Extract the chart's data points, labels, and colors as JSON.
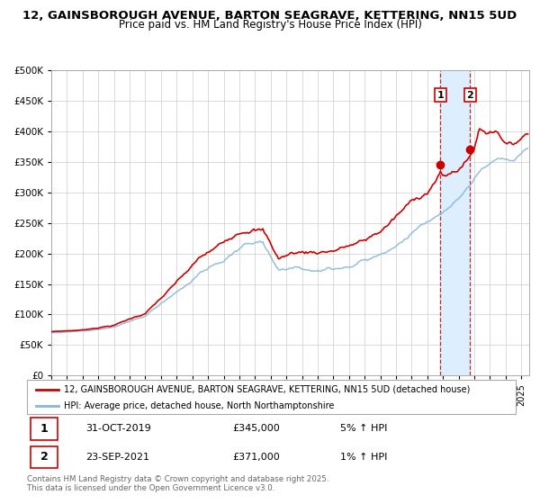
{
  "title_line1": "12, GAINSBOROUGH AVENUE, BARTON SEAGRAVE, KETTERING, NN15 5UD",
  "title_line2": "Price paid vs. HM Land Registry's House Price Index (HPI)",
  "legend_line1": "12, GAINSBOROUGH AVENUE, BARTON SEAGRAVE, KETTERING, NN15 5UD (detached house)",
  "legend_line2": "HPI: Average price, detached house, North Northamptonshire",
  "footnote": "Contains HM Land Registry data © Crown copyright and database right 2025.\nThis data is licensed under the Open Government Licence v3.0.",
  "sale1_label": "1",
  "sale1_date": "31-OCT-2019",
  "sale1_price": "£345,000",
  "sale1_hpi": "5% ↑ HPI",
  "sale2_label": "2",
  "sale2_date": "23-SEP-2021",
  "sale2_price": "£371,000",
  "sale2_hpi": "1% ↑ HPI",
  "sale1_x": 2019.83,
  "sale2_x": 2021.73,
  "sale1_price_val": 345000,
  "sale2_price_val": 371000,
  "ylim": [
    0,
    500000
  ],
  "xlim_start": 1995.0,
  "xlim_end": 2025.5,
  "red_color": "#cc0000",
  "blue_color": "#88b8d8",
  "highlight_color": "#ddeeff",
  "grid_color": "#cccccc",
  "hpi_waypoints": [
    [
      1995.0,
      70000
    ],
    [
      1997.0,
      73000
    ],
    [
      1999.0,
      82000
    ],
    [
      2001.0,
      100000
    ],
    [
      2003.0,
      145000
    ],
    [
      2004.5,
      180000
    ],
    [
      2006.0,
      205000
    ],
    [
      2007.5,
      235000
    ],
    [
      2008.5,
      242000
    ],
    [
      2009.5,
      195000
    ],
    [
      2010.5,
      205000
    ],
    [
      2012.0,
      205000
    ],
    [
      2013.0,
      208000
    ],
    [
      2014.0,
      215000
    ],
    [
      2015.0,
      225000
    ],
    [
      2016.0,
      238000
    ],
    [
      2017.0,
      258000
    ],
    [
      2018.0,
      280000
    ],
    [
      2019.0,
      300000
    ],
    [
      2020.0,
      315000
    ],
    [
      2020.5,
      320000
    ],
    [
      2021.0,
      330000
    ],
    [
      2021.5,
      345000
    ],
    [
      2022.0,
      360000
    ],
    [
      2022.5,
      375000
    ],
    [
      2023.0,
      380000
    ],
    [
      2023.5,
      385000
    ],
    [
      2024.0,
      378000
    ],
    [
      2024.5,
      372000
    ],
    [
      2025.3,
      390000
    ]
  ],
  "pp_waypoints": [
    [
      1995.0,
      72000
    ],
    [
      1997.0,
      75000
    ],
    [
      1999.0,
      84000
    ],
    [
      2001.0,
      105000
    ],
    [
      2003.0,
      155000
    ],
    [
      2004.5,
      193000
    ],
    [
      2006.0,
      215000
    ],
    [
      2007.0,
      240000
    ],
    [
      2007.8,
      252000
    ],
    [
      2008.5,
      248000
    ],
    [
      2009.5,
      200000
    ],
    [
      2010.5,
      210000
    ],
    [
      2012.0,
      213000
    ],
    [
      2013.0,
      218000
    ],
    [
      2014.0,
      226000
    ],
    [
      2015.0,
      232000
    ],
    [
      2016.0,
      248000
    ],
    [
      2017.0,
      272000
    ],
    [
      2018.0,
      295000
    ],
    [
      2019.0,
      315000
    ],
    [
      2019.83,
      345000
    ],
    [
      2020.0,
      338000
    ],
    [
      2020.5,
      342000
    ],
    [
      2021.0,
      350000
    ],
    [
      2021.73,
      371000
    ],
    [
      2022.0,
      385000
    ],
    [
      2022.3,
      418000
    ],
    [
      2022.8,
      410000
    ],
    [
      2023.0,
      415000
    ],
    [
      2023.5,
      415000
    ],
    [
      2024.0,
      395000
    ],
    [
      2024.5,
      390000
    ],
    [
      2025.3,
      408000
    ]
  ]
}
